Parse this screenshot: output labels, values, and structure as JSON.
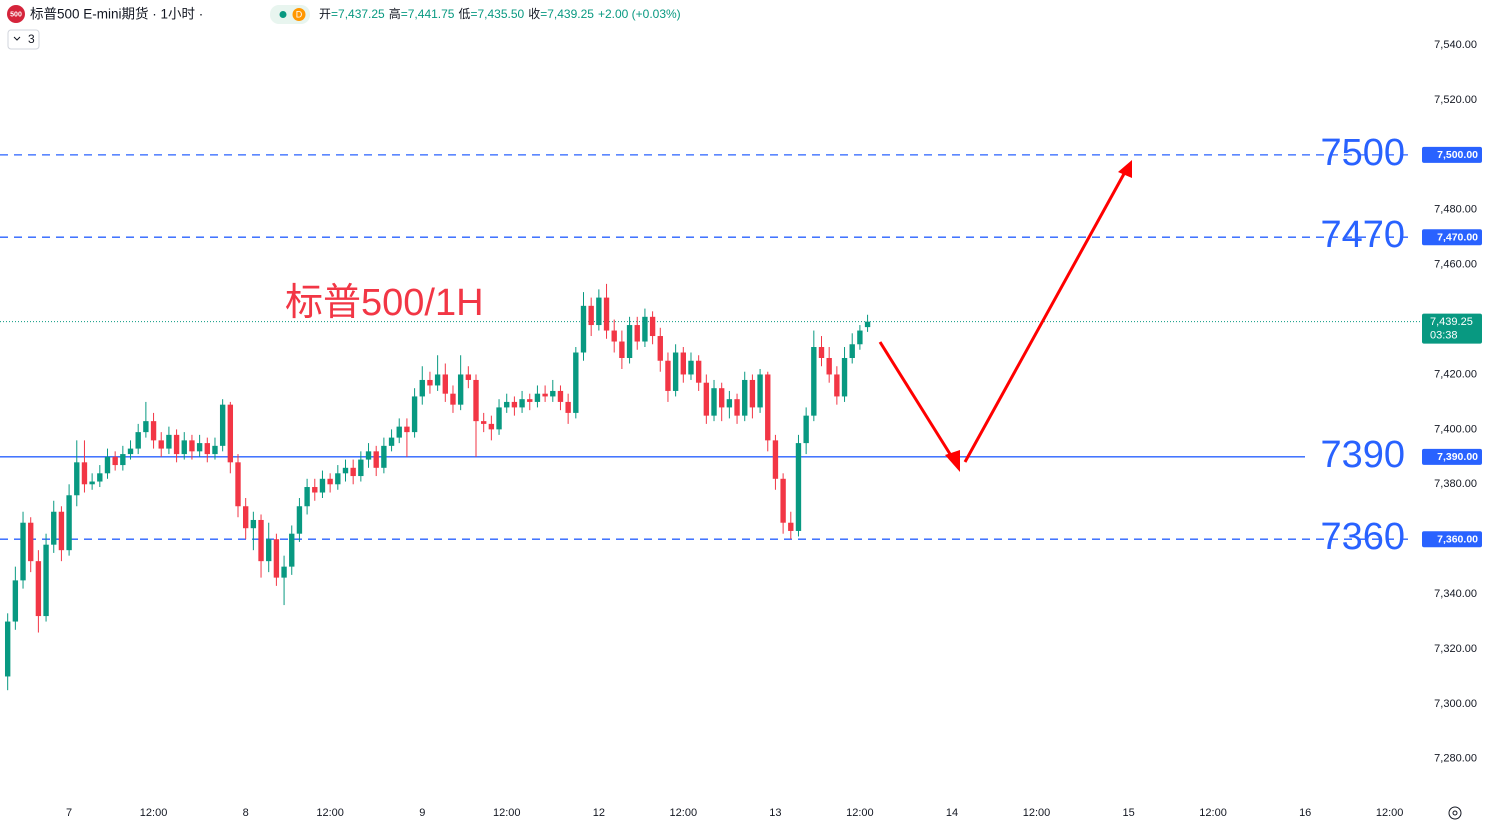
{
  "header": {
    "logo": "500",
    "title": "标普500 E-mini期货 · 1小时 ·",
    "badge": "D",
    "indicators": "3",
    "ohlc": [
      {
        "label": "开",
        "value": "=7,437.25"
      },
      {
        "label": "高",
        "value": "=7,441.75"
      },
      {
        "label": "低",
        "value": "=7,435.50"
      },
      {
        "label": "收",
        "value": "=7,439.25"
      }
    ],
    "change": "+2.00 (+0.03%)"
  },
  "chart_data": {
    "type": "candlestick",
    "annotation": "标普500/1H",
    "up_color": "#089981",
    "down_color": "#f23645",
    "level_color": "#2962ff",
    "xlim": [
      -9,
      174
    ],
    "ylim": [
      7265,
      7556.4
    ],
    "xticks": [
      {
        "value": 0,
        "label": "7"
      },
      {
        "value": 11,
        "label": "12:00"
      },
      {
        "value": 23,
        "label": "8"
      },
      {
        "value": 34,
        "label": "12:00"
      },
      {
        "value": 46,
        "label": "9"
      },
      {
        "value": 57,
        "label": "12:00"
      },
      {
        "value": 69,
        "label": "12"
      },
      {
        "value": 80,
        "label": "12:00"
      },
      {
        "value": 92,
        "label": "13"
      },
      {
        "value": 103,
        "label": "12:00"
      },
      {
        "value": 115,
        "label": "14"
      },
      {
        "value": 126,
        "label": "12:00"
      },
      {
        "value": 138,
        "label": "15"
      },
      {
        "value": 149,
        "label": "12:00"
      },
      {
        "value": 161,
        "label": "16"
      },
      {
        "value": 172,
        "label": "12:00"
      }
    ],
    "yticks": [
      {
        "value": 7540,
        "label": "7,540.00"
      },
      {
        "value": 7520,
        "label": "7,520.00"
      },
      {
        "value": 7480,
        "label": "7,480.00"
      },
      {
        "value": 7460,
        "label": "7,460.00"
      },
      {
        "value": 7420,
        "label": "7,420.00"
      },
      {
        "value": 7400,
        "label": "7,400.00"
      },
      {
        "value": 7380,
        "label": "7,380.00"
      },
      {
        "value": 7340,
        "label": "7,340.00"
      },
      {
        "value": 7320,
        "label": "7,320.00"
      },
      {
        "value": 7300,
        "label": "7,300.00"
      },
      {
        "value": 7280,
        "label": "7,280.00"
      }
    ],
    "levels": [
      {
        "value": 7500,
        "tag": "7,500.00",
        "dashed": true
      },
      {
        "value": 7470,
        "tag": "7,470.00",
        "dashed": true
      },
      {
        "value": 7390,
        "tag": "7,390.00",
        "dashed": false
      },
      {
        "value": 7360,
        "tag": "7,360.00",
        "dashed": true
      }
    ],
    "last_price": {
      "value": 7439.25,
      "label": "7,439.25",
      "countdown": "03:38"
    },
    "x": [
      -8,
      -7,
      -6,
      -5,
      -4,
      -3,
      -2,
      -1,
      0,
      1,
      2,
      3,
      4,
      5,
      6,
      7,
      8,
      9,
      10,
      11,
      12,
      13,
      14,
      15,
      16,
      17,
      18,
      19,
      20,
      21,
      22,
      23,
      24,
      25,
      26,
      27,
      28,
      29,
      30,
      31,
      32,
      33,
      34,
      35,
      36,
      37,
      38,
      39,
      40,
      41,
      42,
      43,
      44,
      45,
      46,
      47,
      48,
      49,
      50,
      51,
      52,
      53,
      54,
      55,
      56,
      57,
      58,
      59,
      60,
      61,
      62,
      63,
      64,
      65,
      66,
      67,
      68,
      69,
      70,
      71,
      72,
      73,
      74,
      75,
      76,
      77,
      78,
      79,
      80,
      81,
      82,
      83,
      84,
      85,
      86,
      87,
      88,
      89,
      90,
      91,
      92,
      93,
      94,
      95,
      96,
      97,
      98,
      99,
      100,
      101,
      102,
      103,
      104
    ],
    "open": [
      7310,
      7330,
      7345,
      7366,
      7352,
      7332,
      7358,
      7370,
      7356,
      7376,
      7388,
      7380,
      7381,
      7384,
      7390,
      7387,
      7391,
      7393,
      7399,
      7403,
      7396,
      7393,
      7398,
      7391,
      7396,
      7392,
      7395,
      7391,
      7394,
      7409,
      7388,
      7372,
      7364,
      7367,
      7352,
      7360,
      7346,
      7350,
      7362,
      7372,
      7379,
      7377,
      7382,
      7380,
      7384,
      7386,
      7383,
      7389,
      7392,
      7386,
      7394,
      7397,
      7401,
      7399,
      7412,
      7418,
      7416,
      7420,
      7413,
      7409,
      7420,
      7418,
      7403,
      7402,
      7400,
      7408,
      7410,
      7408,
      7411,
      7410,
      7413,
      7412,
      7414,
      7410,
      7406,
      7428,
      7445,
      7438,
      7448,
      7436,
      7432,
      7426,
      7438,
      7432,
      7441,
      7434,
      7425,
      7414,
      7428,
      7420,
      7425,
      7417,
      7405,
      7415,
      7408,
      7411,
      7405,
      7418,
      7408,
      7420,
      7396,
      7382,
      7366,
      7363,
      7395,
      7405,
      7430,
      7426,
      7420,
      7412,
      7426,
      7431,
      7437.25
    ],
    "high": [
      7333,
      7350,
      7370,
      7368,
      7356,
      7362,
      7374,
      7372,
      7380,
      7396,
      7396,
      7384,
      7387,
      7393,
      7392,
      7394,
      7396,
      7402,
      7410,
      7406,
      7399,
      7401,
      7400,
      7399,
      7398,
      7398,
      7397,
      7397,
      7411,
      7410,
      7391,
      7375,
      7370,
      7369,
      7366,
      7362,
      7354,
      7365,
      7375,
      7382,
      7382,
      7385,
      7384,
      7387,
      7389,
      7389,
      7392,
      7395,
      7394,
      7397,
      7400,
      7404,
      7404,
      7415,
      7423,
      7421,
      7427,
      7424,
      7416,
      7427,
      7423,
      7420,
      7406,
      7405,
      7411,
      7413,
      7412,
      7414,
      7413,
      7416,
      7416,
      7418,
      7416,
      7413,
      7430,
      7450,
      7448,
      7451,
      7453,
      7440,
      7436,
      7441,
      7441,
      7444,
      7443,
      7437,
      7428,
      7431,
      7430,
      7428,
      7427,
      7420,
      7418,
      7417,
      7414,
      7413,
      7421,
      7420,
      7422,
      7421,
      7398,
      7384,
      7370,
      7398,
      7408,
      7436,
      7434,
      7430,
      7423,
      7430,
      7435,
      7438,
      7441.75
    ],
    "low": [
      7305,
      7327,
      7342,
      7348,
      7326,
      7330,
      7355,
      7352,
      7354,
      7372,
      7377,
      7378,
      7379,
      7382,
      7385,
      7385,
      7389,
      7391,
      7397,
      7393,
      7390,
      7391,
      7388,
      7389,
      7389,
      7390,
      7388,
      7389,
      7392,
      7384,
      7368,
      7360,
      7356,
      7346,
      7348,
      7343,
      7336,
      7347,
      7359,
      7369,
      7374,
      7375,
      7377,
      7378,
      7381,
      7380,
      7381,
      7386,
      7383,
      7384,
      7392,
      7395,
      7390,
      7397,
      7409,
      7413,
      7414,
      7410,
      7406,
      7407,
      7415,
      7390,
      7399,
      7396,
      7398,
      7406,
      7405,
      7406,
      7407,
      7408,
      7410,
      7410,
      7407,
      7402,
      7404,
      7425,
      7434,
      7436,
      7433,
      7428,
      7422,
      7424,
      7429,
      7430,
      7431,
      7421,
      7410,
      7412,
      7417,
      7418,
      7414,
      7402,
      7403,
      7403,
      7404,
      7402,
      7403,
      7404,
      7406,
      7392,
      7378,
      7362,
      7360,
      7361,
      7391,
      7403,
      7423,
      7417,
      7409,
      7410,
      7424,
      7429,
      7435.5
    ],
    "close": [
      7330,
      7345,
      7366,
      7352,
      7332,
      7358,
      7370,
      7356,
      7376,
      7388,
      7380,
      7381,
      7384,
      7390,
      7387,
      7391,
      7393,
      7399,
      7403,
      7396,
      7393,
      7398,
      7391,
      7396,
      7392,
      7395,
      7391,
      7394,
      7409,
      7388,
      7372,
      7364,
      7367,
      7352,
      7360,
      7346,
      7350,
      7362,
      7372,
      7379,
      7377,
      7382,
      7380,
      7384,
      7386,
      7383,
      7389,
      7392,
      7386,
      7394,
      7397,
      7401,
      7399,
      7412,
      7418,
      7416,
      7420,
      7413,
      7409,
      7420,
      7418,
      7403,
      7402,
      7400,
      7408,
      7410,
      7408,
      7411,
      7410,
      7413,
      7412,
      7414,
      7410,
      7406,
      7428,
      7445,
      7438,
      7448,
      7436,
      7432,
      7426,
      7438,
      7432,
      7441,
      7434,
      7425,
      7414,
      7428,
      7420,
      7425,
      7417,
      7405,
      7415,
      7408,
      7411,
      7405,
      7418,
      7408,
      7420,
      7396,
      7382,
      7366,
      7363,
      7395,
      7405,
      7430,
      7426,
      7420,
      7412,
      7426,
      7431,
      7436,
      7439.25
    ]
  }
}
